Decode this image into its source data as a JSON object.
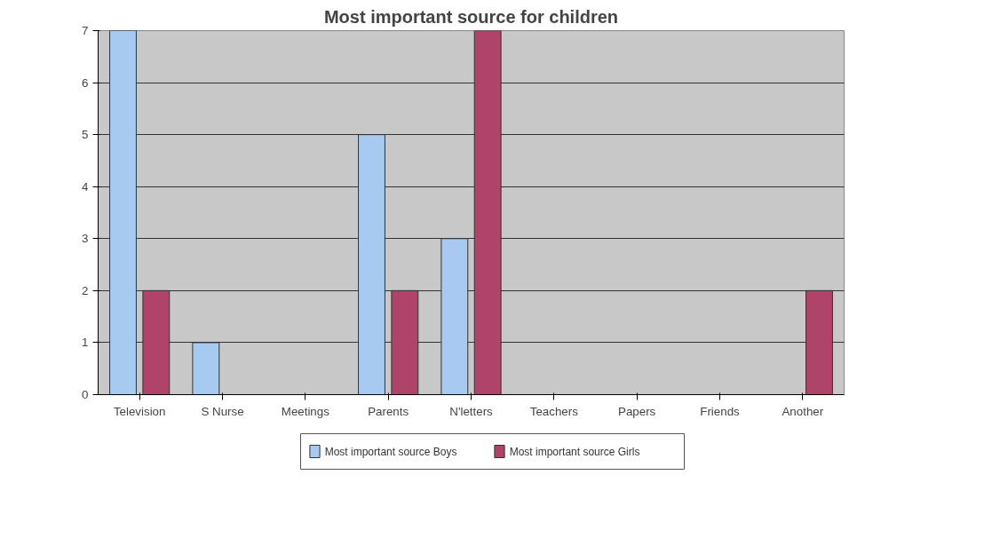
{
  "chart_data": {
    "type": "bar",
    "title": "Most important source for children",
    "categories": [
      "Television",
      "S Nurse",
      "Meetings",
      "Parents",
      "N'letters",
      "Teachers",
      "Papers",
      "Friends",
      "Another"
    ],
    "series": [
      {
        "name": "Most important source Boys",
        "color": "#a6caf0",
        "values": [
          7,
          1,
          0,
          5,
          3,
          0,
          0,
          0,
          0
        ]
      },
      {
        "name": "Most important source Girls",
        "color": "#b0436a",
        "values": [
          2,
          0,
          0,
          2,
          7,
          0,
          0,
          0,
          2
        ]
      }
    ],
    "ylim": [
      0,
      7
    ],
    "yticks": [
      0,
      1,
      2,
      3,
      4,
      5,
      6,
      7
    ],
    "grid": "y",
    "legend": "bottom"
  }
}
